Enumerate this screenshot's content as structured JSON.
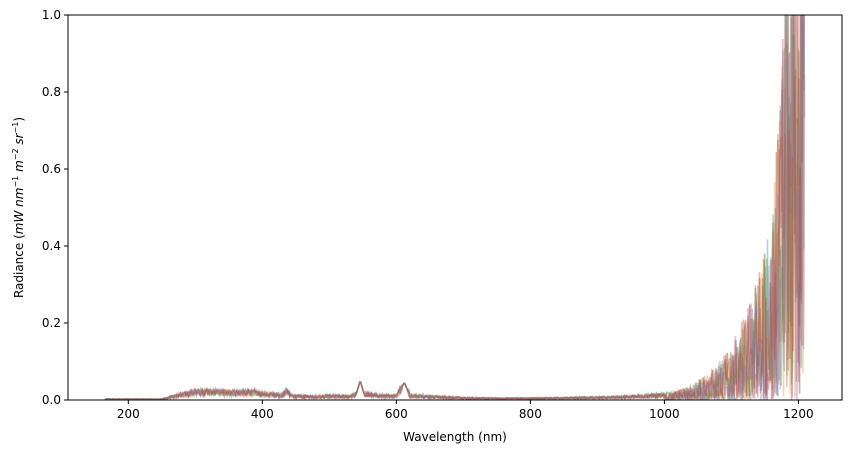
{
  "chart_data": {
    "type": "line",
    "title": "",
    "xlabel": "Wavelength (nm)",
    "ylabel": {
      "base": "Radiance (",
      "unit1": "mW nm",
      "exp1": "−1",
      "unit2": " m",
      "exp2": "−2",
      "unit3": " sr",
      "exp3": "−1",
      "close": ")"
    },
    "xlim": [
      110,
      1265
    ],
    "ylim": [
      0,
      1.0
    ],
    "xticks": [
      200,
      400,
      600,
      800,
      1000,
      1200
    ],
    "xtick_labels": [
      "200",
      "400",
      "600",
      "800",
      "1000",
      "1200"
    ],
    "yticks": [
      0.0,
      0.2,
      0.4,
      0.6,
      0.8,
      1.0
    ],
    "ytick_labels": [
      "0.0",
      "0.2",
      "0.4",
      "0.6",
      "0.8",
      "1.0"
    ],
    "grid": false,
    "series": [
      {
        "color": "#1f77b4"
      },
      {
        "color": "#ff7f0e"
      },
      {
        "color": "#2ca02c"
      },
      {
        "color": "#d62728"
      },
      {
        "color": "#9467bd"
      },
      {
        "color": "#8c564b"
      }
    ],
    "spectrum_envelope": {
      "x": [
        165,
        250,
        270,
        300,
        330,
        360,
        390,
        400,
        430,
        436,
        445,
        480,
        500,
        530,
        540,
        546,
        552,
        580,
        600,
        612,
        620,
        650,
        700,
        750,
        800,
        850,
        900,
        950,
        1000,
        1030,
        1060,
        1080,
        1100,
        1120,
        1140,
        1160,
        1170,
        1180,
        1190,
        1200,
        1210
      ],
      "y": [
        0.002,
        0.002,
        0.01,
        0.02,
        0.02,
        0.018,
        0.02,
        0.015,
        0.012,
        0.022,
        0.01,
        0.008,
        0.01,
        0.008,
        0.015,
        0.05,
        0.015,
        0.01,
        0.01,
        0.045,
        0.012,
        0.008,
        0.005,
        0.004,
        0.004,
        0.005,
        0.006,
        0.008,
        0.012,
        0.02,
        0.04,
        0.06,
        0.09,
        0.14,
        0.2,
        0.3,
        0.45,
        0.7,
        1.0,
        1.0,
        0.9
      ]
    }
  }
}
